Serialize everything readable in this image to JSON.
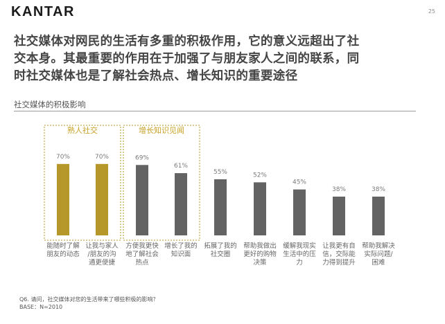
{
  "header": {
    "logo": "KANTAR",
    "page_number": "25"
  },
  "headline": {
    "lines": [
      "社交媒体对网民的生活有多重的积极作用，它的意义远超出了社",
      "交本身。其最重要的作用在于加强了与朋友家人之间的联系，同",
      "时社交媒体也是了解社会热点、增长知识的重要途径"
    ]
  },
  "subtitle": "社交媒体的积极影响",
  "footnote": {
    "question": "Q6. 请问，社交媒体对您的生活带来了哪些积极的影响？",
    "base": "BASE：N=2010"
  },
  "colors": {
    "gold": "#b5972a",
    "gray": "#636363",
    "gold_text": "#c9a227"
  },
  "chart_data": {
    "type": "bar",
    "unit": "%",
    "ylim": [
      0,
      100
    ],
    "grid": false,
    "groups": [
      {
        "label": "熟人社交",
        "bar_indices": [
          0,
          1
        ]
      },
      {
        "label": "增长知识见闻",
        "bar_indices": [
          2,
          3
        ]
      }
    ],
    "categories": [
      [
        "能随时了解",
        "朋友的动态"
      ],
      [
        "让我与家人",
        "/朋友的沟",
        "通更便捷"
      ],
      [
        "方便我更快",
        "地了解社会",
        "热点"
      ],
      [
        "增长了我的",
        "知识面"
      ],
      [
        "拓展了我的",
        "社交圈"
      ],
      [
        "帮助我做出",
        "更好的购物",
        "决策"
      ],
      [
        "缓解我现实",
        "生活中的压",
        "力"
      ],
      [
        "让我更有自",
        "信，交际能",
        "力得到提升"
      ],
      [
        "帮助我解决",
        "实际问题/",
        "困难"
      ]
    ],
    "values": [
      70,
      70,
      69,
      61,
      55,
      52,
      45,
      38,
      38
    ],
    "value_labels": [
      "70%",
      "70%",
      "69%",
      "61%",
      "55%",
      "52%",
      "45%",
      "38%",
      "38%"
    ],
    "bar_colors": [
      "gold",
      "gold",
      "gray",
      "gray",
      "gray",
      "gray",
      "gray",
      "gray",
      "gray"
    ]
  }
}
